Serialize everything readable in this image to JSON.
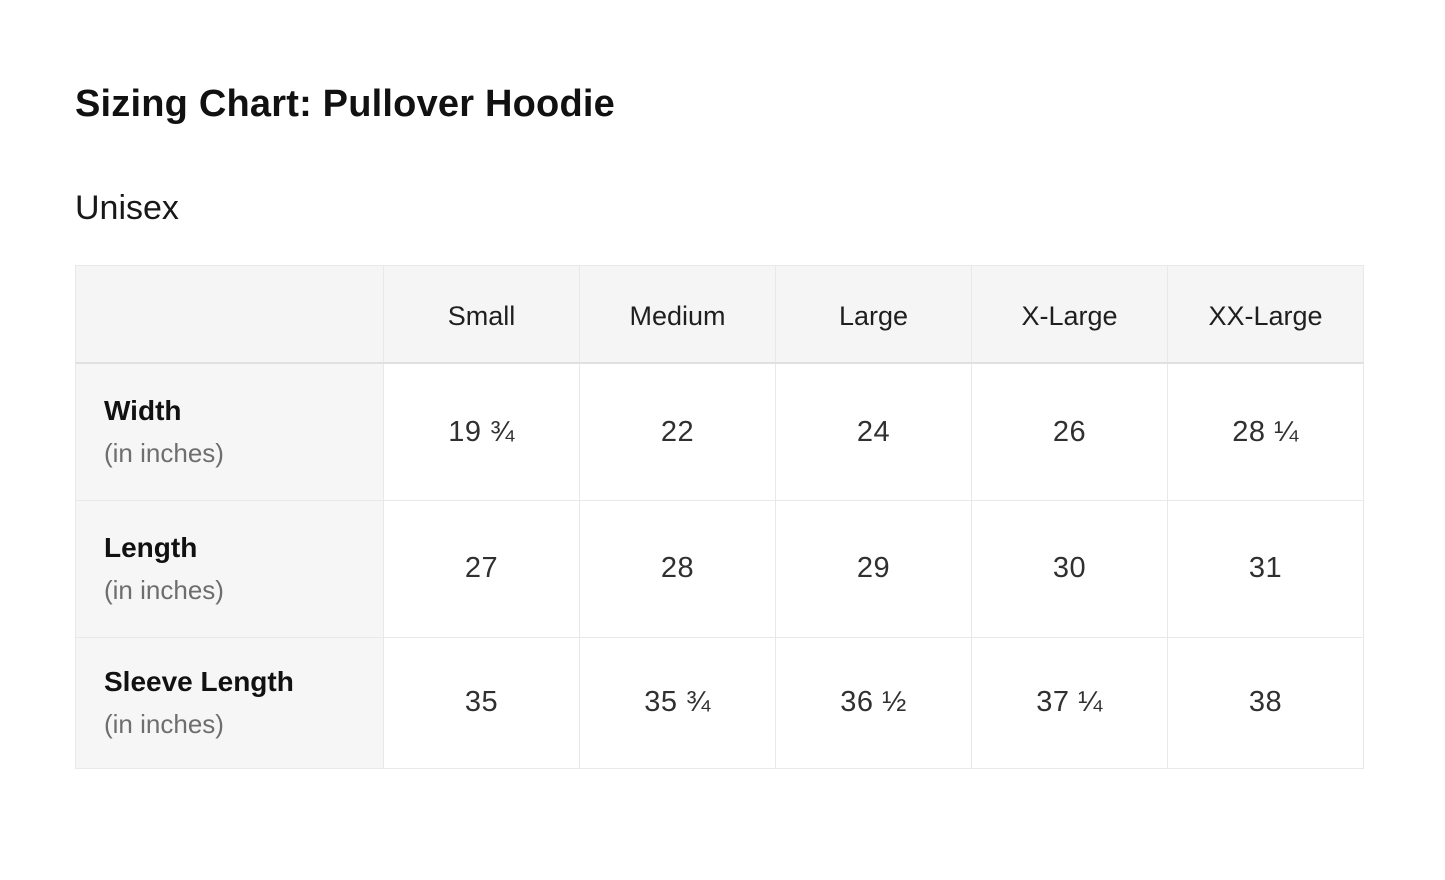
{
  "page": {
    "title": "Sizing Chart: Pullover Hoodie",
    "subtitle": "Unisex"
  },
  "table": {
    "corner_label": "",
    "columns": [
      "Small",
      "Medium",
      "Large",
      "X-Large",
      "XX-Large"
    ],
    "rows": [
      {
        "label": "Width",
        "sublabel": "(in inches)",
        "values": [
          "19 ¾",
          "22",
          "24",
          "26",
          "28 ¼"
        ]
      },
      {
        "label": "Length",
        "sublabel": "(in inches)",
        "values": [
          "27",
          "28",
          "29",
          "30",
          "31"
        ]
      },
      {
        "label": "Sleeve Length",
        "sublabel": "(in inches)",
        "values": [
          "35",
          "35 ¾",
          "36 ½",
          "37 ¼",
          "38"
        ]
      }
    ]
  },
  "colors": {
    "page_bg": "#ffffff",
    "header_bg": "#f5f5f5",
    "label_col_bg": "#f6f6f6",
    "border": "#e8e8e8",
    "header_border": "#e0e0e0",
    "text_primary": "#111111",
    "text_value": "#303030",
    "text_secondary": "#6e6e6e"
  },
  "chart_data": {
    "type": "table",
    "title": "Sizing Chart: Pullover Hoodie",
    "subtitle": "Unisex",
    "units": "inches",
    "columns": [
      "Small",
      "Medium",
      "Large",
      "X-Large",
      "XX-Large"
    ],
    "row_labels": [
      "Width (in inches)",
      "Length (in inches)",
      "Sleeve Length (in inches)"
    ],
    "series": [
      {
        "name": "Width",
        "display_values": [
          "19 ¾",
          "22",
          "24",
          "26",
          "28 ¼"
        ],
        "values": [
          19.75,
          22,
          24,
          26,
          28.25
        ]
      },
      {
        "name": "Length",
        "display_values": [
          "27",
          "28",
          "29",
          "30",
          "31"
        ],
        "values": [
          27,
          28,
          29,
          30,
          31
        ]
      },
      {
        "name": "Sleeve Length",
        "display_values": [
          "35",
          "35 ¾",
          "36 ½",
          "37 ¼",
          "38"
        ],
        "values": [
          35,
          35.75,
          36.5,
          37.25,
          38
        ]
      }
    ]
  }
}
